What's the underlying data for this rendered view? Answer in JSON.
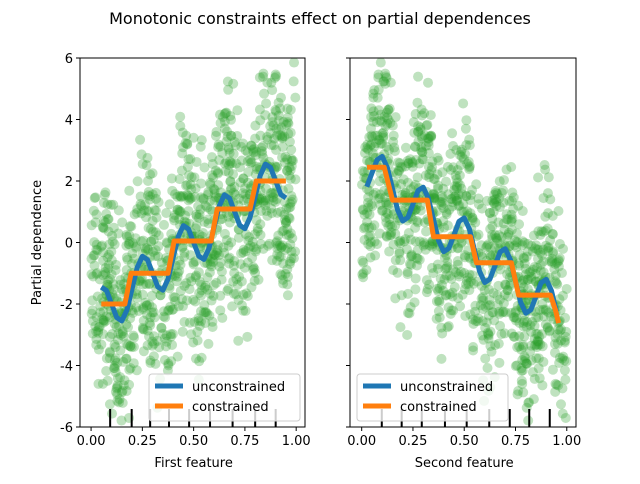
{
  "chart_data": {
    "title": "Monotonic constraints effect on partial dependences",
    "ylabel": "Partial dependence",
    "ylim": [
      -6,
      6
    ],
    "yticks": [
      -6,
      -4,
      -2,
      0,
      2,
      4,
      6
    ],
    "xticks": [
      "0.00",
      "0.25",
      "0.50",
      "0.75",
      "1.00"
    ],
    "xtick_values": [
      0,
      0.25,
      0.5,
      0.75,
      1.0
    ],
    "scatter_color": "#2ca02c",
    "legend_placement": "lower right / lower left",
    "panels": [
      {
        "xlabel": "First feature",
        "xlim": [
          -0.054,
          1.043
        ],
        "show_ylabel": true,
        "legend_placement": "lower right",
        "legend": [
          "unconstrained",
          "constrained"
        ],
        "deciles": [
          0.093,
          0.198,
          0.288,
          0.38,
          0.478,
          0.58,
          0.69,
          0.8,
          0.9
        ],
        "scatter_trend": "increasing",
        "series": [
          {
            "name": "unconstrained",
            "type": "line",
            "color": "#1f77b4",
            "x": [
              0.05,
              0.075,
              0.1,
              0.125,
              0.15,
              0.175,
              0.2,
              0.225,
              0.25,
              0.275,
              0.3,
              0.325,
              0.35,
              0.375,
              0.4,
              0.425,
              0.45,
              0.475,
              0.5,
              0.525,
              0.55,
              0.575,
              0.6,
              0.625,
              0.65,
              0.675,
              0.7,
              0.725,
              0.75,
              0.775,
              0.8,
              0.825,
              0.85,
              0.875,
              0.9,
              0.925,
              0.95
            ],
            "y": [
              -1.45,
              -1.56,
              -2.0,
              -2.44,
              -2.55,
              -2.19,
              -1.5,
              -0.81,
              -0.45,
              -0.56,
              -1.0,
              -1.44,
              -1.55,
              -1.19,
              -0.5,
              0.19,
              0.55,
              0.44,
              0.0,
              -0.44,
              -0.55,
              -0.19,
              0.5,
              1.19,
              1.55,
              1.44,
              1.0,
              0.56,
              0.45,
              0.81,
              1.5,
              2.19,
              2.55,
              2.44,
              2.0,
              1.56,
              1.45
            ]
          },
          {
            "name": "constrained",
            "type": "line",
            "color": "#ff7f0e",
            "x": [
              0.05,
              0.165,
              0.195,
              0.375,
              0.405,
              0.585,
              0.615,
              0.775,
              0.805,
              0.95
            ],
            "y": [
              -2.0,
              -2.0,
              -1.0,
              -1.0,
              0.05,
              0.05,
              1.09,
              1.09,
              2.0,
              2.0
            ]
          }
        ]
      },
      {
        "xlabel": "Second feature",
        "xlim": [
          -0.057,
          1.045
        ],
        "show_ylabel": false,
        "legend_placement": "lower left",
        "legend": [
          "unconstrained",
          "constrained"
        ],
        "deciles": [
          0.098,
          0.195,
          0.293,
          0.406,
          0.512,
          0.622,
          0.722,
          0.817,
          0.917
        ],
        "scatter_trend": "decreasing",
        "series": [
          {
            "name": "unconstrained",
            "type": "line",
            "color": "#1f77b4",
            "x": [
              0.025,
              0.05,
              0.075,
              0.1,
              0.125,
              0.15,
              0.175,
              0.2,
              0.225,
              0.25,
              0.275,
              0.3,
              0.325,
              0.35,
              0.375,
              0.4,
              0.425,
              0.45,
              0.475,
              0.5,
              0.525,
              0.55,
              0.575,
              0.6,
              0.625,
              0.65,
              0.675,
              0.7,
              0.725,
              0.75,
              0.775,
              0.8,
              0.825,
              0.85,
              0.875,
              0.9,
              0.925,
              0.95
            ],
            "y": [
              1.81,
              2.25,
              2.69,
              2.8,
              2.44,
              1.75,
              1.06,
              0.7,
              0.81,
              1.25,
              1.69,
              1.8,
              1.44,
              0.75,
              0.06,
              -0.3,
              -0.19,
              0.25,
              0.69,
              0.8,
              0.44,
              -0.25,
              -0.94,
              -1.3,
              -1.19,
              -0.75,
              -0.31,
              -0.2,
              -0.56,
              -1.25,
              -1.94,
              -2.3,
              -2.19,
              -1.75,
              -1.31,
              -1.2,
              -1.56,
              -2.25
            ]
          },
          {
            "name": "constrained",
            "type": "line",
            "color": "#ff7f0e",
            "x": [
              0.026,
              0.11,
              0.15,
              0.32,
              0.35,
              0.53,
              0.56,
              0.73,
              0.765,
              0.92,
              0.945,
              0.96
            ],
            "y": [
              2.45,
              2.45,
              1.38,
              1.38,
              0.19,
              0.19,
              -0.66,
              -0.66,
              -1.71,
              -1.71,
              -2.2,
              -2.62
            ]
          }
        ]
      }
    ]
  }
}
